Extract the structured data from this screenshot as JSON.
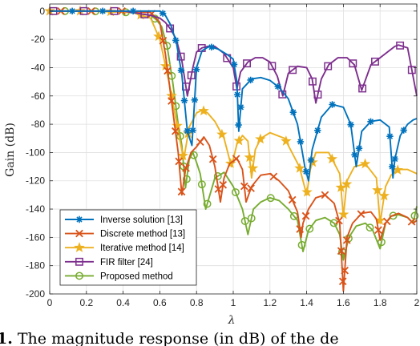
{
  "caption": {
    "prefix": "1.",
    "text": " The magnitude response (in dB) of the de"
  },
  "chart_data": {
    "type": "line",
    "title": "",
    "xlabel": "λ",
    "ylabel": "Gain (dB)",
    "xlim": [
      0,
      2
    ],
    "ylim": [
      -200,
      5
    ],
    "xticks": [
      "0",
      "0.2",
      "0.4",
      "0.6",
      "0.8",
      "1",
      "1.2",
      "1.4",
      "1.6",
      "1.8",
      "2"
    ],
    "yticks": [
      "0",
      "-20",
      "-40",
      "-60",
      "-80",
      "-100",
      "-120",
      "-140",
      "-160",
      "-180",
      "-200"
    ],
    "grid": true,
    "legend_position": "bottom-left",
    "series": [
      {
        "name": "Inverse solution [13]",
        "color": "#0072BD",
        "marker": "asterisk",
        "x": [
          0,
          0.1,
          0.2,
          0.3,
          0.4,
          0.5,
          0.6,
          0.63,
          0.66,
          0.69,
          0.72,
          0.75,
          0.775,
          0.8,
          0.83,
          0.87,
          0.92,
          0.97,
          1.0,
          1.02,
          1.03,
          1.05,
          1.1,
          1.15,
          1.2,
          1.25,
          1.3,
          1.35,
          1.39,
          1.41,
          1.43,
          1.48,
          1.54,
          1.6,
          1.64,
          1.67,
          1.7,
          1.75,
          1.8,
          1.85,
          1.87,
          1.88,
          1.91,
          1.95,
          1.98,
          2.0
        ],
        "y": [
          0,
          0,
          0,
          0,
          0,
          0,
          0,
          -3,
          -10,
          -22,
          -45,
          -85,
          -95,
          -40,
          -28,
          -25,
          -27,
          -31,
          -34,
          -50,
          -85,
          -55,
          -48,
          -47,
          -49,
          -54,
          -62,
          -80,
          -110,
          -120,
          -98,
          -75,
          -66,
          -68,
          -80,
          -110,
          -85,
          -78,
          -77,
          -82,
          -118,
          -105,
          -88,
          -80,
          -77,
          -76
        ]
      },
      {
        "name": "Discrete method [13]",
        "color": "#D95319",
        "marker": "x",
        "x": [
          0,
          0.2,
          0.4,
          0.55,
          0.6,
          0.63,
          0.66,
          0.7,
          0.72,
          0.74,
          0.77,
          0.8,
          0.84,
          0.87,
          0.9,
          0.93,
          0.95,
          0.98,
          1.02,
          1.05,
          1.07,
          1.1,
          1.15,
          1.2,
          1.25,
          1.3,
          1.35,
          1.37,
          1.38,
          1.41,
          1.45,
          1.5,
          1.55,
          1.58,
          1.6,
          1.62,
          1.65,
          1.7,
          1.75,
          1.78,
          1.8,
          1.83,
          1.86,
          1.9,
          1.95,
          1.98,
          2.0
        ],
        "y": [
          0,
          0,
          0,
          -1,
          -8,
          -30,
          -60,
          -100,
          -130,
          -112,
          -100,
          -96,
          -89,
          -95,
          -110,
          -135,
          -118,
          -108,
          -104,
          -112,
          -135,
          -124,
          -116,
          -115,
          -120,
          -127,
          -142,
          -160,
          -150,
          -140,
          -132,
          -130,
          -136,
          -150,
          -198,
          -160,
          -150,
          -143,
          -142,
          -147,
          -162,
          -150,
          -145,
          -143,
          -146,
          -150,
          -148
        ]
      },
      {
        "name": "Iterative method [14]",
        "color": "#EDB120",
        "marker": "star",
        "x": [
          0,
          0.25,
          0.45,
          0.55,
          0.6,
          0.65,
          0.7,
          0.73,
          0.76,
          0.8,
          0.83,
          0.86,
          0.9,
          0.95,
          0.99,
          1.02,
          1.05,
          1.08,
          1.1,
          1.12,
          1.15,
          1.2,
          1.28,
          1.36,
          1.4,
          1.42,
          1.45,
          1.52,
          1.58,
          1.6,
          1.62,
          1.66,
          1.72,
          1.78,
          1.8,
          1.83,
          1.86,
          1.9,
          1.95,
          2.0
        ],
        "y": [
          0,
          0,
          -1,
          -5,
          -20,
          -50,
          -85,
          -105,
          -82,
          -72,
          -70,
          -72,
          -78,
          -90,
          -110,
          -94,
          -88,
          -92,
          -118,
          -98,
          -90,
          -86,
          -90,
          -110,
          -130,
          -112,
          -100,
          -100,
          -115,
          -145,
          -120,
          -110,
          -108,
          -118,
          -150,
          -124,
          -116,
          -112,
          -112,
          -115
        ]
      },
      {
        "name": "FIR filter [24]",
        "color": "#7E2F8E",
        "marker": "square",
        "x": [
          0,
          0.15,
          0.3,
          0.4,
          0.45,
          0.5,
          0.55,
          0.6,
          0.63,
          0.66,
          0.69,
          0.72,
          0.75,
          0.78,
          0.8,
          0.83,
          0.86,
          0.9,
          0.95,
          1.0,
          1.02,
          1.04,
          1.08,
          1.12,
          1.16,
          1.2,
          1.24,
          1.27,
          1.3,
          1.35,
          1.4,
          1.43,
          1.45,
          1.48,
          1.52,
          1.57,
          1.62,
          1.66,
          1.7,
          1.75,
          1.8,
          1.85,
          1.88,
          1.9,
          1.95,
          2.0
        ],
        "y": [
          0,
          0,
          0,
          0,
          -1,
          -2,
          -3,
          -5,
          -8,
          -13,
          -20,
          -35,
          -60,
          -40,
          -29,
          -26,
          -25,
          -25,
          -30,
          -40,
          -55,
          -43,
          -36,
          -33,
          -33,
          -36,
          -46,
          -60,
          -44,
          -39,
          -40,
          -48,
          -65,
          -48,
          -38,
          -33,
          -33,
          -38,
          -56,
          -38,
          -33,
          -28,
          -25,
          -24,
          -26,
          -60
        ]
      },
      {
        "name": "Proposed method",
        "color": "#77AC30",
        "marker": "circle",
        "x": [
          0,
          0.2,
          0.45,
          0.55,
          0.58,
          0.61,
          0.64,
          0.67,
          0.7,
          0.72,
          0.74,
          0.76,
          0.78,
          0.8,
          0.82,
          0.85,
          0.9,
          0.95,
          1.0,
          1.05,
          1.08,
          1.11,
          1.15,
          1.2,
          1.25,
          1.3,
          1.35,
          1.38,
          1.41,
          1.45,
          1.5,
          1.55,
          1.58,
          1.6,
          1.63,
          1.67,
          1.72,
          1.76,
          1.8,
          1.83,
          1.86,
          1.9,
          1.95,
          1.98,
          2.0
        ],
        "y": [
          0,
          0,
          -1,
          -3,
          -6,
          -11,
          -25,
          -50,
          -80,
          -95,
          -125,
          -105,
          -100,
          -107,
          -115,
          -140,
          -118,
          -114,
          -124,
          -140,
          -158,
          -140,
          -135,
          -132,
          -134,
          -140,
          -148,
          -170,
          -155,
          -148,
          -146,
          -150,
          -158,
          -176,
          -160,
          -152,
          -150,
          -155,
          -168,
          -150,
          -145,
          -144,
          -146,
          -150,
          -138
        ]
      }
    ]
  }
}
